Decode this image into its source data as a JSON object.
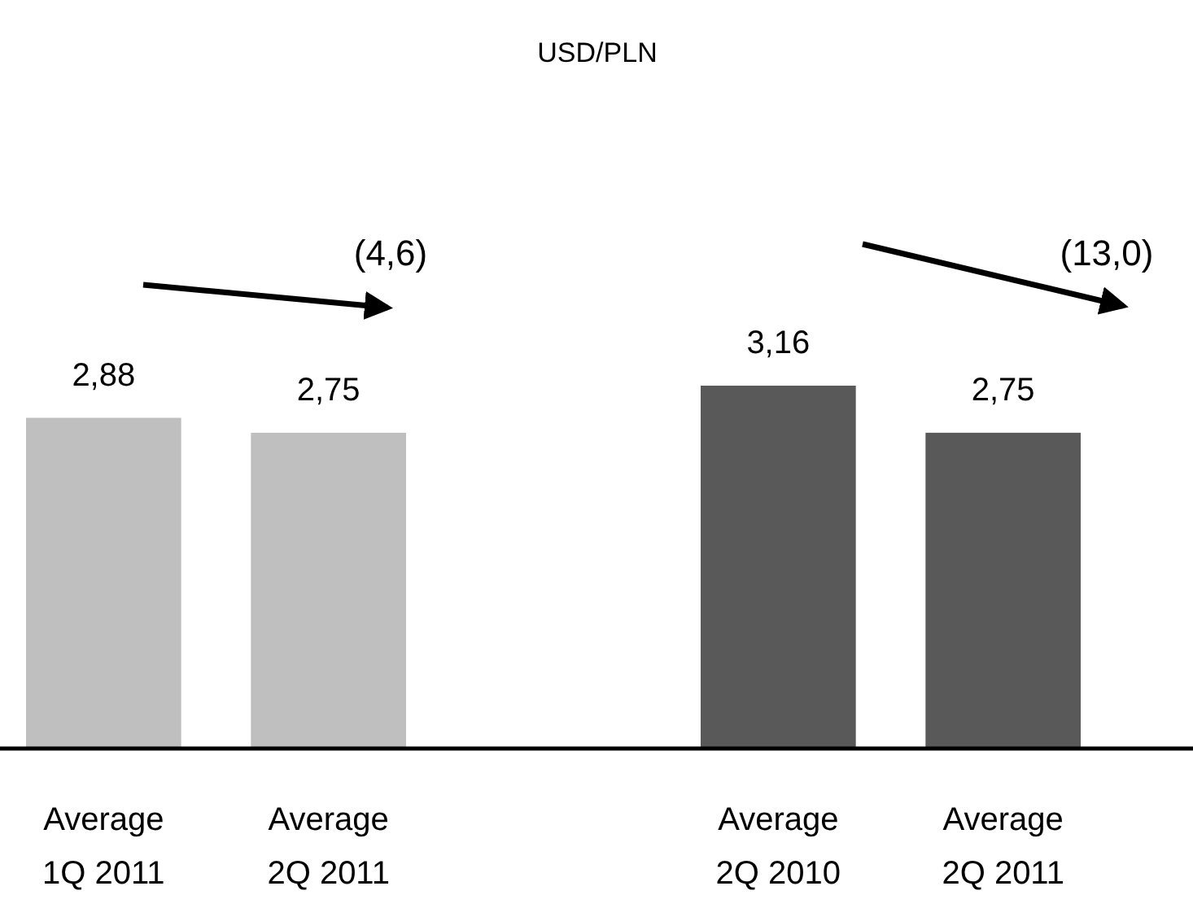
{
  "chart_data": {
    "type": "bar",
    "title": "USD/PLN",
    "categories": [
      "Average 1Q 2011",
      "Average 2Q 2011",
      null,
      "Average 2Q 2010",
      "Average 2Q 2011"
    ],
    "values": [
      2.88,
      2.75,
      null,
      3.16,
      2.75
    ],
    "colors": [
      "#bfbfbf",
      "#bfbfbf",
      null,
      "#595959",
      "#595959"
    ],
    "value_labels": [
      "2,88",
      "2,75",
      null,
      "3,16",
      "2,75"
    ],
    "annotations": [
      "(4,6)",
      "(13,0)"
    ]
  }
}
